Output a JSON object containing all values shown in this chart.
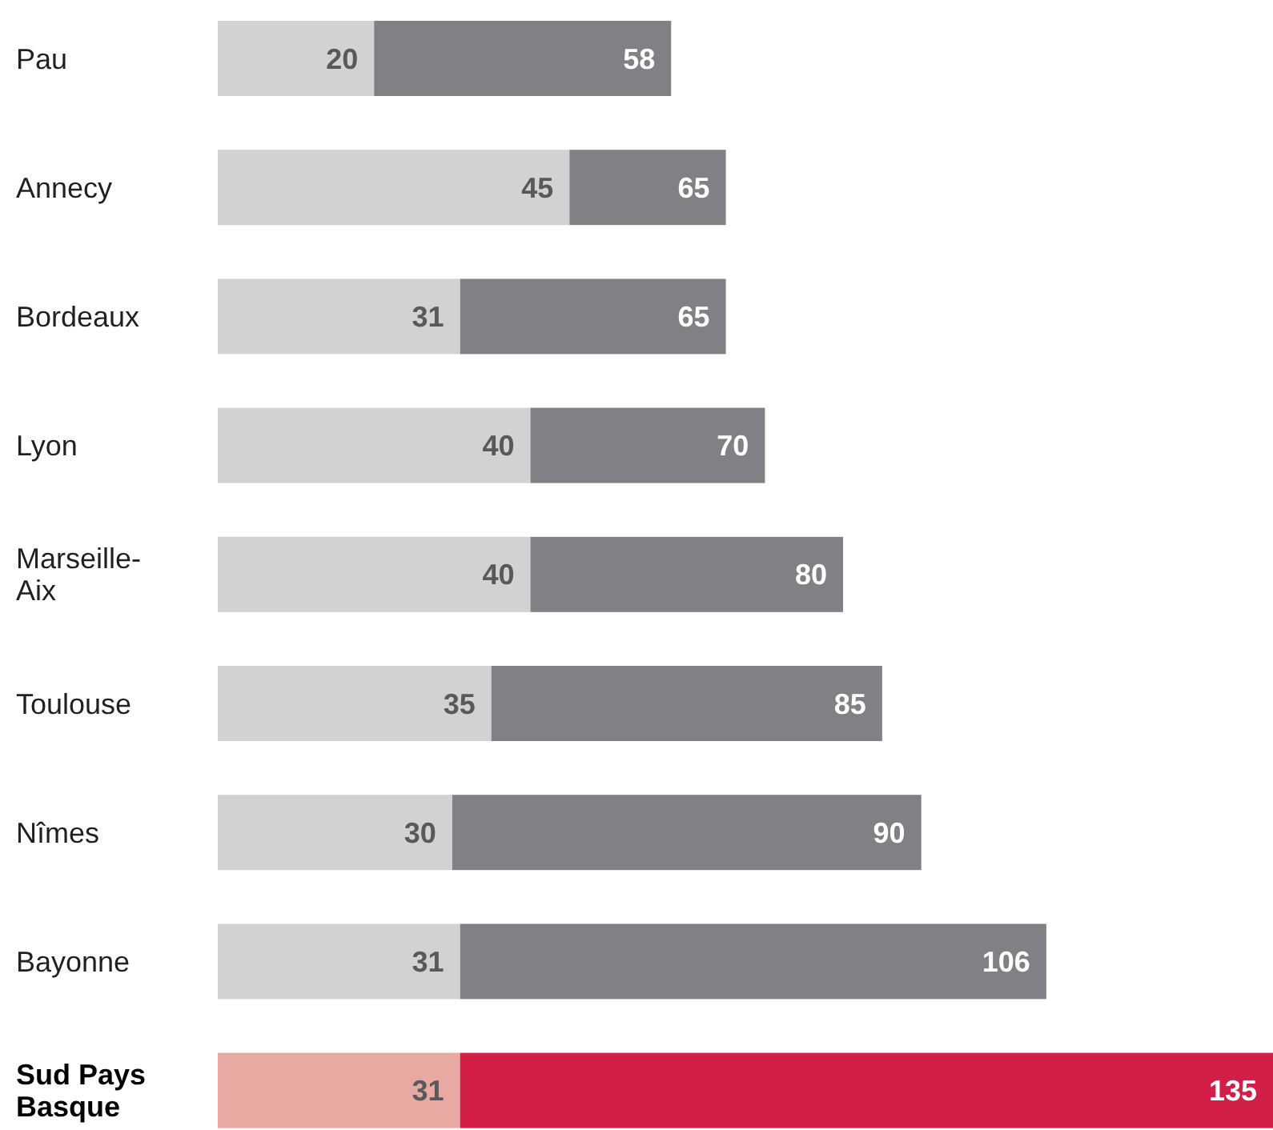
{
  "chart_data": {
    "type": "bar",
    "orientation": "horizontal",
    "stacked": true,
    "categories": [
      "Pau",
      "Annecy",
      "Bordeaux",
      "Lyon",
      "Marseille-Aix",
      "Toulouse",
      "Nîmes",
      "Bayonne",
      "Sud Pays Basque"
    ],
    "series": [
      {
        "colors": [
          "#d1d2d4",
          "#d1d2d4",
          "#d1d2d4",
          "#d1d2d4",
          "#d1d2d4",
          "#d1d2d4",
          "#d1d2d4",
          "#d1d2d4",
          "#e8a9a3"
        ],
        "values": [
          20,
          45,
          31,
          40,
          40,
          35,
          30,
          31,
          31
        ],
        "value_labels": [
          "20",
          "45",
          "31",
          "40",
          "40",
          "35",
          "30",
          "31",
          "31"
        ]
      },
      {
        "colors": [
          "#808184",
          "#808184",
          "#808184",
          "#808184",
          "#808184",
          "#808184",
          "#808184",
          "#808184",
          "#d31f47"
        ],
        "values": [
          38,
          20,
          34,
          30,
          40,
          50,
          60,
          75,
          104
        ]
      }
    ],
    "totals": [
      "58",
      "65",
      "65",
      "70",
      "80",
      "85",
      "90",
      "106",
      "135"
    ]
  }
}
